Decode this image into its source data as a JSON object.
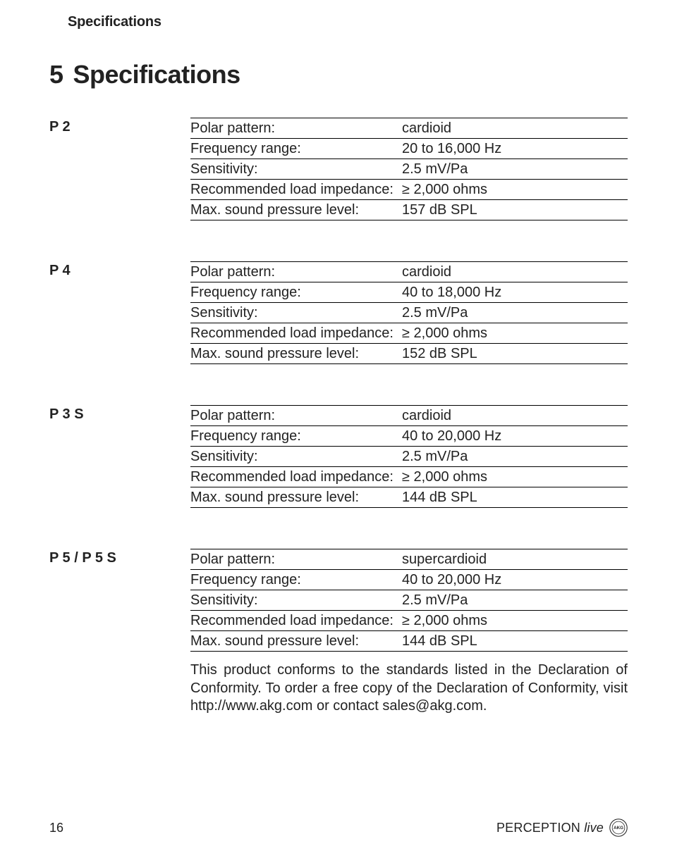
{
  "running_head": "Specifications",
  "section": {
    "number": "5",
    "title": "Specifications"
  },
  "spec_labels": {
    "polar": "Polar pattern:",
    "freq": "Frequency range:",
    "sens": "Sensitivity:",
    "load": "Recommended load impedance:",
    "spl": "Max. sound pressure level:"
  },
  "models": [
    {
      "name": "P 2",
      "polar": "cardioid",
      "freq": "20 to 16,000 Hz",
      "sens": "2.5 mV/Pa",
      "load": "≥ 2,000 ohms",
      "spl": "157 dB SPL"
    },
    {
      "name": "P 4",
      "polar": "cardioid",
      "freq": "40 to 18,000 Hz",
      "sens": "2.5 mV/Pa",
      "load": "≥ 2,000 ohms",
      "spl": "152 dB SPL"
    },
    {
      "name": "P 3 S",
      "polar": "cardioid",
      "freq": "40 to 20,000 Hz",
      "sens": "2.5 mV/Pa",
      "load": "≥ 2,000 ohms",
      "spl": "144 dB SPL"
    },
    {
      "name": "P 5 / P 5 S",
      "polar": "supercardioid",
      "freq": "40 to 20,000 Hz",
      "sens": "2.5 mV/Pa",
      "load": "≥ 2,000 ohms",
      "spl": "144 dB SPL"
    }
  ],
  "conformity_text": "This product conforms to the standards listed in the Declaration of Conformity. To order a free copy of the Declaration of Conformity, visit http://www.akg.com or contact sales@akg.com.",
  "footer": {
    "page": "16",
    "brand": "PERCEPTION",
    "brand_suffix": "live",
    "logo_label": "AKG"
  }
}
